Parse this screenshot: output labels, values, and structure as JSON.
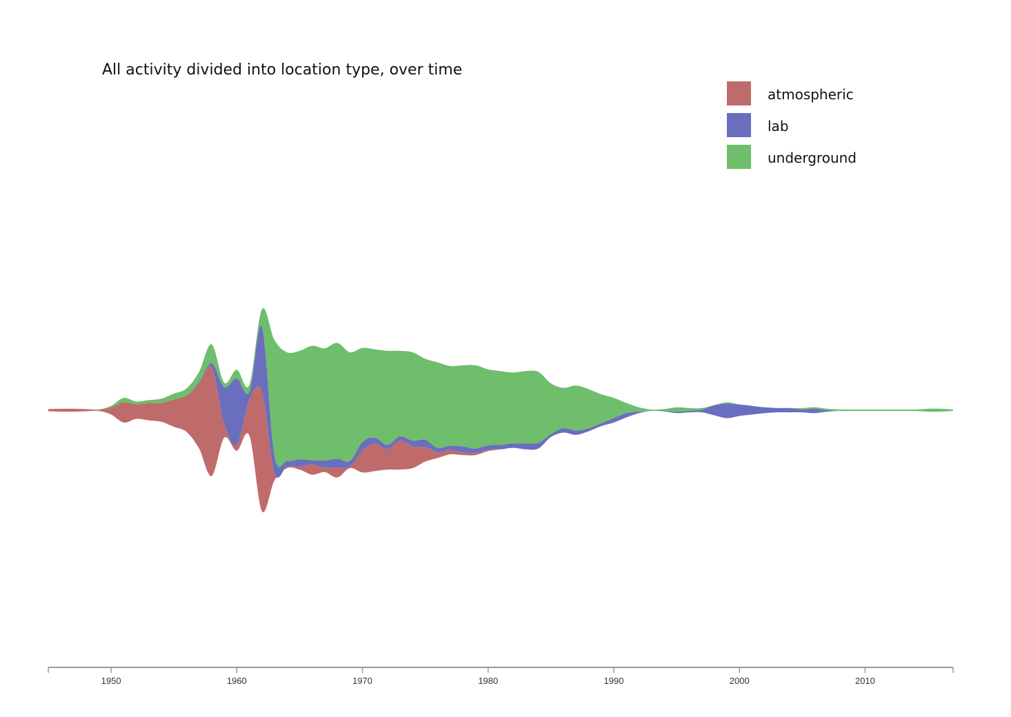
{
  "chart_data": {
    "type": "area",
    "title": "All activity divided into location type, over time",
    "xlabel": "",
    "ylabel": "",
    "xlim": [
      1945,
      2017
    ],
    "baseline": "wiggle (streamgraph)",
    "legend_position": "top-right",
    "grid": false,
    "x_ticks": [
      "1950",
      "1960",
      "1970",
      "1980",
      "1990",
      "2000",
      "2010"
    ],
    "x": [
      1945,
      1946,
      1947,
      1948,
      1949,
      1950,
      1951,
      1952,
      1953,
      1954,
      1955,
      1956,
      1957,
      1958,
      1959,
      1960,
      1961,
      1962,
      1963,
      1964,
      1965,
      1966,
      1967,
      1968,
      1969,
      1970,
      1971,
      1972,
      1973,
      1974,
      1975,
      1976,
      1977,
      1978,
      1979,
      1980,
      1981,
      1982,
      1983,
      1984,
      1985,
      1986,
      1987,
      1988,
      1989,
      1990,
      1991,
      1992,
      1993,
      1994,
      1995,
      1996,
      1997,
      1998,
      1999,
      2000,
      2001,
      2002,
      2003,
      2004,
      2005,
      2006,
      2007,
      2008,
      2009,
      2010,
      2011,
      2012,
      2013,
      2014,
      2015,
      2016,
      2017
    ],
    "series": [
      {
        "name": "atmospheric",
        "color": "#bf6b6b",
        "values": [
          3,
          4,
          4,
          3,
          2,
          10,
          28,
          20,
          24,
          26,
          38,
          50,
          90,
          150,
          20,
          8,
          50,
          165,
          10,
          2,
          4,
          14,
          6,
          14,
          2,
          30,
          38,
          28,
          40,
          30,
          20,
          8,
          6,
          4,
          3,
          2,
          0,
          0,
          0,
          0,
          0,
          0,
          0,
          0,
          0,
          0,
          0,
          0,
          0,
          0,
          0,
          0,
          0,
          0,
          0,
          0,
          0,
          0,
          0,
          0,
          0,
          0,
          0,
          0,
          0,
          0,
          0,
          0,
          0,
          0,
          0,
          0,
          0
        ]
      },
      {
        "name": "lab",
        "color": "#6a6ebf",
        "values": [
          0,
          0,
          0,
          0,
          0,
          0,
          0,
          0,
          0,
          0,
          0,
          0,
          2,
          6,
          50,
          92,
          10,
          90,
          24,
          8,
          10,
          6,
          10,
          12,
          8,
          12,
          8,
          6,
          6,
          8,
          10,
          6,
          6,
          8,
          6,
          6,
          6,
          6,
          8,
          8,
          4,
          6,
          6,
          4,
          4,
          6,
          6,
          2,
          0,
          1,
          2,
          2,
          4,
          14,
          20,
          16,
          12,
          8,
          6,
          6,
          4,
          6,
          2,
          0,
          0,
          0,
          0,
          0,
          0,
          0,
          0,
          0,
          0
        ]
      },
      {
        "name": "underground",
        "color": "#6ebe6b",
        "values": [
          0,
          0,
          0,
          0,
          0,
          2,
          6,
          4,
          4,
          6,
          8,
          10,
          14,
          26,
          6,
          12,
          10,
          24,
          160,
          150,
          150,
          158,
          155,
          160,
          150,
          130,
          122,
          130,
          118,
          122,
          112,
          118,
          110,
          112,
          115,
          105,
          102,
          98,
          100,
          98,
          70,
          56,
          62,
          54,
          40,
          28,
          14,
          6,
          2,
          2,
          6,
          4,
          2,
          0,
          2,
          0,
          0,
          0,
          0,
          0,
          2,
          2,
          2,
          2,
          2,
          2,
          2,
          2,
          2,
          2,
          4,
          4,
          2
        ]
      }
    ]
  }
}
